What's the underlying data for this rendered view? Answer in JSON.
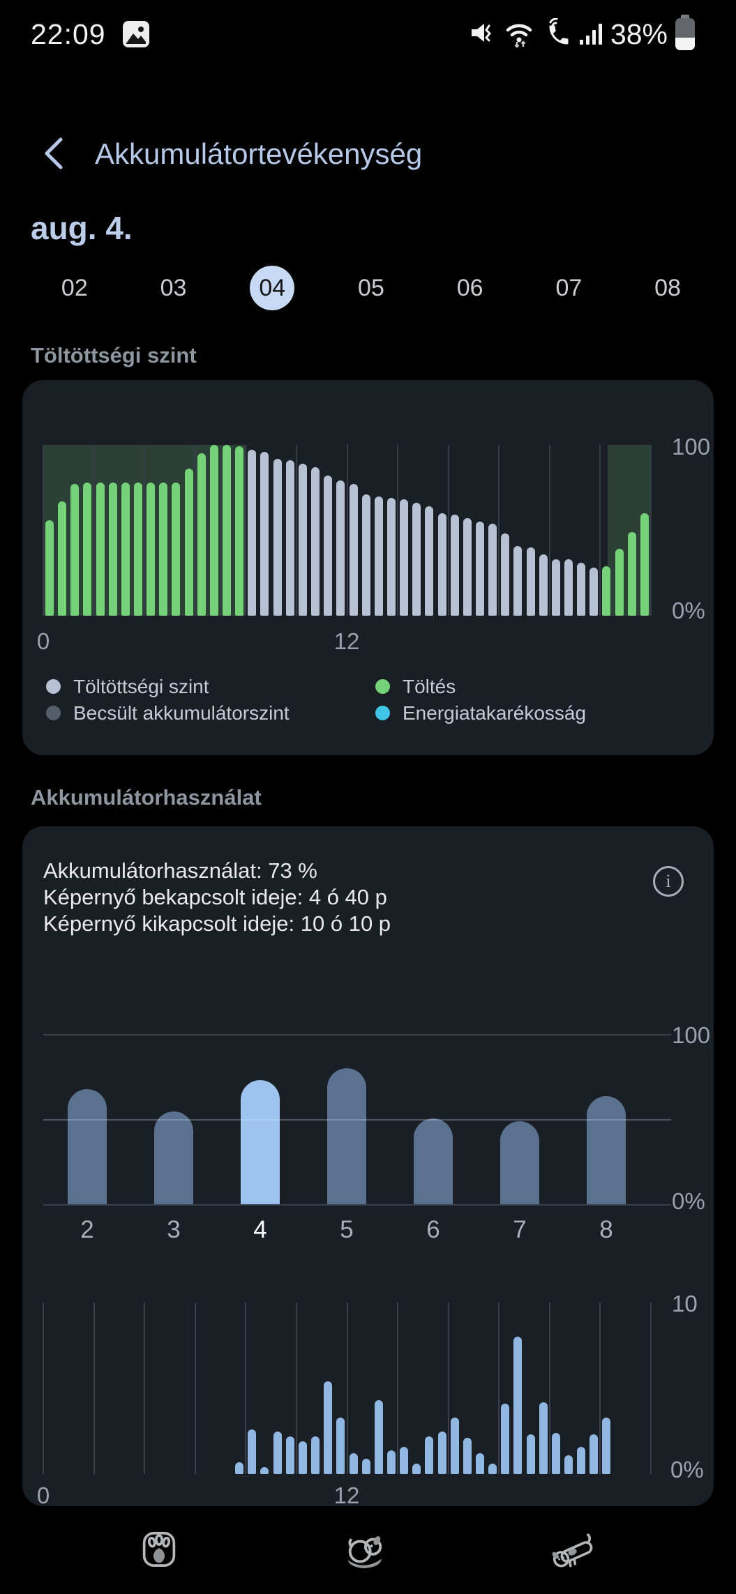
{
  "status_bar": {
    "time": "22:09",
    "battery_text": "38%",
    "icons": [
      "gallery-notification-icon",
      "mute-vibrate-icon",
      "wifi-icon",
      "wifi-calling-icon",
      "signal-strength-icon",
      "battery-icon"
    ]
  },
  "header": {
    "title": "Akkumulátortevékenység"
  },
  "date_title": "aug. 4.",
  "day_selector": {
    "days": [
      "02",
      "03",
      "04",
      "05",
      "06",
      "07",
      "08"
    ],
    "selected_index": 2
  },
  "sections": {
    "charge_level": "Töltöttségi szint",
    "battery_usage": "Akkumulátorhasználat"
  },
  "legend": [
    {
      "label": "Töltöttségi szint",
      "color_key": "level_gray"
    },
    {
      "label": "Töltés",
      "color_key": "charge_green"
    },
    {
      "label": "Becsült akkumulátorszint",
      "color_key": "estimate_gray"
    },
    {
      "label": "Energiatakarékosság",
      "color_key": "saver_cyan"
    }
  ],
  "usage_card": {
    "usage_line": "Akkumulátorhasználat: 73 %",
    "screen_on_line": "Képernyő bekapcsolt ideje: 4 ó 40 p",
    "screen_off_line": "Képernyő kikapcsolt ideje: 10 ó 10 p",
    "info_icon": "i"
  },
  "colors": {
    "accent_blue": "#b7c9e8",
    "selected_day_bg": "#c7daf3",
    "card_bg": "#1a1f26",
    "charge_green": "#76d278",
    "level_gray": "#b6c2d3",
    "estimate_gray": "#555f6b",
    "saver_cyan": "#40c4e8",
    "usage_bar": "#5a7290",
    "usage_bar_highlight": "#9cc4ef",
    "hourly_bar": "#90b8e2"
  },
  "chart_data": [
    {
      "type": "bar",
      "title": "Töltöttségi szint",
      "ylabel": "%",
      "ylim": [
        0,
        100
      ],
      "y_labels": [
        "100",
        "0%"
      ],
      "x_axis_hours": [
        0,
        24
      ],
      "x_ticks": [
        "0",
        "12"
      ],
      "interval_hours": 0.5,
      "values": [
        56,
        67,
        77,
        78,
        78,
        78,
        78,
        78,
        78,
        78,
        78,
        86,
        95,
        100,
        100,
        99,
        97,
        96,
        92,
        91,
        89,
        87,
        82,
        79,
        77,
        71,
        70,
        69,
        68,
        66,
        64,
        60,
        59,
        57,
        55,
        54,
        48,
        41,
        40,
        36,
        33,
        33,
        31,
        28,
        29,
        39,
        49,
        60
      ],
      "charging_bar_ranges": [
        [
          0,
          15
        ],
        [
          44,
          47
        ]
      ],
      "charging_regions_hours": [
        [
          0,
          8
        ],
        [
          22.3,
          24
        ]
      ],
      "legend_position": "bottom",
      "grid": "vertical-every-2h"
    },
    {
      "type": "bar",
      "title": "Akkumulátorhasználat napi",
      "categories": [
        "2",
        "3",
        "4",
        "5",
        "6",
        "7",
        "8"
      ],
      "values": [
        68,
        55,
        73,
        80,
        51,
        49,
        64
      ],
      "highlighted_index": 2,
      "ylim": [
        0,
        100
      ],
      "y_labels": [
        "100",
        "0%"
      ],
      "gridlines_pct": [
        100,
        50,
        0
      ]
    },
    {
      "type": "bar",
      "title": "Akkumulátorhasználat óránként",
      "ylim": [
        0,
        10
      ],
      "y_labels": [
        "10",
        "0%"
      ],
      "x_axis_hours": [
        0,
        24
      ],
      "x_ticks": [
        "0",
        "12"
      ],
      "interval_hours": 0.5,
      "start_hour": 7.5,
      "values": [
        0.7,
        2.6,
        0.4,
        2.5,
        2.2,
        1.9,
        2.2,
        5.4,
        3.3,
        1.2,
        0.9,
        4.3,
        1.4,
        1.6,
        0.6,
        2.2,
        2.5,
        3.3,
        2.1,
        1.2,
        0.6,
        4.1,
        8.0,
        2.3,
        4.2,
        2.4,
        1.1,
        1.6,
        2.3,
        3.3
      ],
      "grid": "vertical-every-2h"
    }
  ],
  "nav_bar": {
    "icons": [
      "paw-back-icon",
      "sleeping-puppy-home-icon",
      "lying-dog-recents-icon"
    ]
  }
}
